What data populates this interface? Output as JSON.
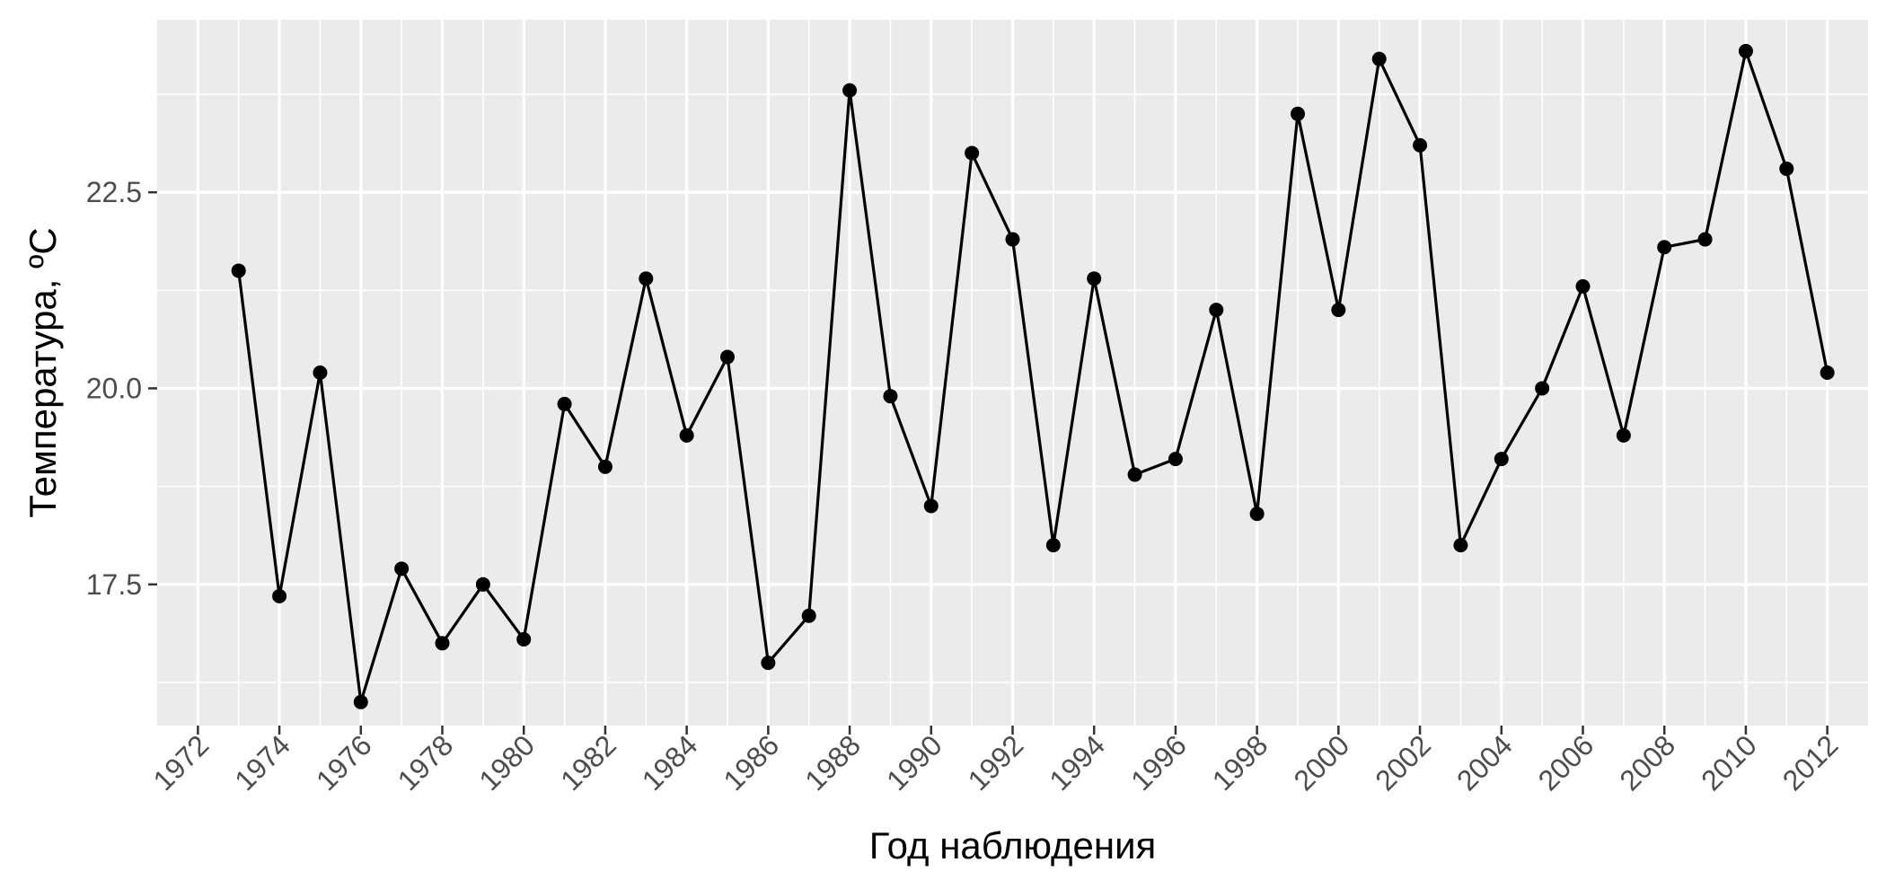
{
  "chart_data": {
    "type": "line",
    "title": "",
    "xlabel": "Год наблюдения",
    "ylabel": "Температура, ºC",
    "xlim": [
      1971,
      2013
    ],
    "ylim": [
      15.7,
      24.7
    ],
    "x_ticks": [
      1972,
      1974,
      1976,
      1978,
      1980,
      1982,
      1984,
      1986,
      1988,
      1990,
      1992,
      1994,
      1996,
      1998,
      2000,
      2002,
      2004,
      2006,
      2008,
      2010,
      2012
    ],
    "y_ticks": [
      "17.5",
      "20.0",
      "22.5"
    ],
    "grid": true,
    "legend": "none",
    "series": [
      {
        "x": [
          1973,
          1974,
          1975,
          1976,
          1977,
          1978,
          1979,
          1980,
          1981,
          1982,
          1983,
          1984,
          1985,
          1986,
          1987,
          1988,
          1989,
          1990,
          1991,
          1992,
          1993,
          1994,
          1995,
          1996,
          1997,
          1998,
          1999,
          2000,
          2001,
          2002,
          2003,
          2004,
          2005,
          2006,
          2007,
          2008,
          2009,
          2010,
          2011,
          2012
        ],
        "y": [
          21.5,
          17.35,
          20.2,
          16.0,
          17.7,
          16.75,
          17.5,
          16.8,
          19.8,
          19.0,
          21.4,
          19.4,
          20.4,
          16.5,
          17.1,
          23.8,
          19.9,
          18.5,
          23.0,
          21.9,
          18.0,
          21.4,
          18.9,
          19.1,
          21.0,
          18.4,
          23.5,
          21.0,
          24.2,
          23.1,
          18.0,
          19.1,
          20.0,
          21.3,
          19.4,
          21.8,
          21.9,
          24.3,
          22.8,
          20.2
        ]
      }
    ],
    "colors": {
      "panel": "#ebebeb",
      "grid": "#ffffff",
      "line": "#000000",
      "point": "#000000"
    }
  }
}
